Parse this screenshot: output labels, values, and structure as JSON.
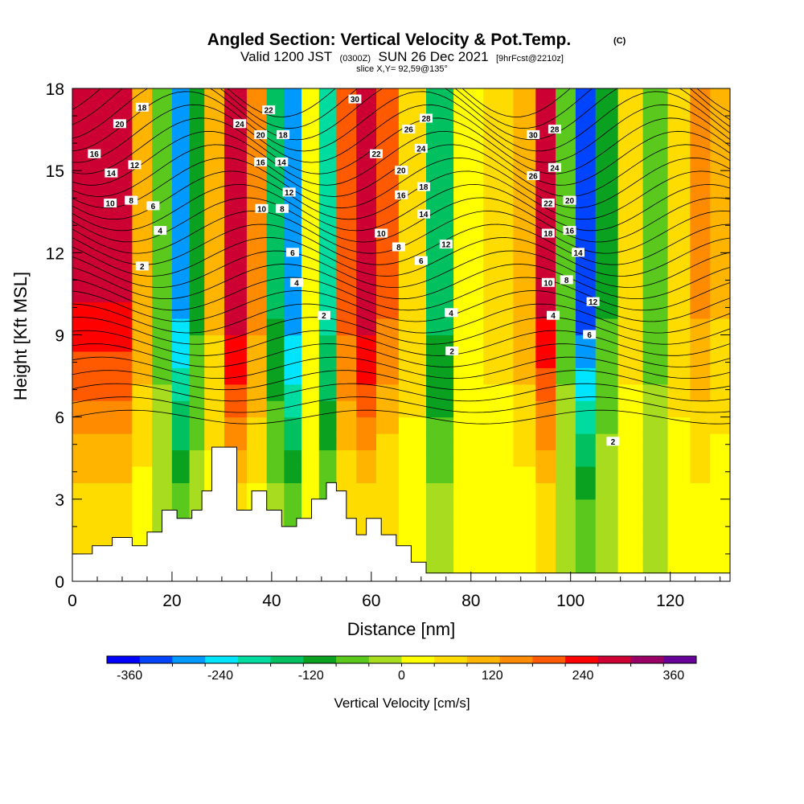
{
  "chart_data": {
    "type": "heatmap",
    "title": "Angled Section: Vertical Velocity & Pot.Temp.",
    "title_units": "(C)",
    "subtitle_parts": [
      "Valid 1200 JST",
      "(0300Z)",
      "SUN 26 Dec 2021",
      "[9hrFcst@2210z]"
    ],
    "slice_label": "slice X,Y= 92,59@135°",
    "xlabel": "Distance [nm]",
    "ylabel": "Height [Kft MSL]",
    "xlim": [
      0,
      132
    ],
    "ylim": [
      0,
      18
    ],
    "xticks": [
      0,
      20,
      40,
      60,
      80,
      100,
      120
    ],
    "yticks": [
      0,
      3,
      6,
      9,
      12,
      15,
      18
    ],
    "colorbar": {
      "label": "Vertical Velocity [cm/s]",
      "tick_values": [
        -360,
        -240,
        -120,
        0,
        120,
        240,
        360
      ],
      "range": [
        -390,
        390
      ],
      "colors": [
        "#0000ff",
        "#0044ff",
        "#0099ff",
        "#00e5ff",
        "#00dca0",
        "#00c060",
        "#0aa020",
        "#5bc81e",
        "#a8dc1e",
        "#ffff00",
        "#ffdc00",
        "#ffb400",
        "#ff8c00",
        "#ff5a00",
        "#ff0000",
        "#cc0033",
        "#990066",
        "#660099"
      ]
    },
    "velocity_bands": [
      {
        "x": 10,
        "v": 260
      },
      {
        "x": 14,
        "v": 120
      },
      {
        "x": 18,
        "v": -60
      },
      {
        "x": 22,
        "v": -280
      },
      {
        "x": 25,
        "v": -100
      },
      {
        "x": 28,
        "v": 100
      },
      {
        "x": 33,
        "v": 300
      },
      {
        "x": 37,
        "v": 150
      },
      {
        "x": 41,
        "v": -140
      },
      {
        "x": 44,
        "v": -300
      },
      {
        "x": 48,
        "v": 40
      },
      {
        "x": 51,
        "v": -200
      },
      {
        "x": 55,
        "v": 200
      },
      {
        "x": 59,
        "v": 300
      },
      {
        "x": 63,
        "v": 180
      },
      {
        "x": 68,
        "v": 80
      },
      {
        "x": 74,
        "v": -150
      },
      {
        "x": 79,
        "v": 30
      },
      {
        "x": 86,
        "v": 60
      },
      {
        "x": 91,
        "v": 120
      },
      {
        "x": 95,
        "v": 280
      },
      {
        "x": 99,
        "v": -60
      },
      {
        "x": 103,
        "v": -330
      },
      {
        "x": 107,
        "v": -90
      },
      {
        "x": 112,
        "v": 60
      },
      {
        "x": 117,
        "v": -60
      },
      {
        "x": 122,
        "v": 80
      },
      {
        "x": 126,
        "v": 140
      },
      {
        "x": 130,
        "v": 90
      }
    ],
    "terrain": [
      {
        "x": 0,
        "h": 1.0
      },
      {
        "x": 4,
        "h": 1.3
      },
      {
        "x": 8,
        "h": 1.6
      },
      {
        "x": 12,
        "h": 1.3
      },
      {
        "x": 15,
        "h": 1.8
      },
      {
        "x": 18,
        "h": 2.6
      },
      {
        "x": 21,
        "h": 2.3
      },
      {
        "x": 24,
        "h": 2.6
      },
      {
        "x": 26,
        "h": 3.3
      },
      {
        "x": 28,
        "h": 4.9
      },
      {
        "x": 31,
        "h": 4.9
      },
      {
        "x": 33,
        "h": 2.6
      },
      {
        "x": 36,
        "h": 3.3
      },
      {
        "x": 39,
        "h": 2.6
      },
      {
        "x": 42,
        "h": 2.0
      },
      {
        "x": 45,
        "h": 2.3
      },
      {
        "x": 48,
        "h": 3.0
      },
      {
        "x": 51,
        "h": 3.6
      },
      {
        "x": 53,
        "h": 3.3
      },
      {
        "x": 55,
        "h": 2.3
      },
      {
        "x": 57,
        "h": 1.7
      },
      {
        "x": 59,
        "h": 2.3
      },
      {
        "x": 62,
        "h": 1.7
      },
      {
        "x": 65,
        "h": 1.3
      },
      {
        "x": 68,
        "h": 0.7
      },
      {
        "x": 71,
        "h": 0.3
      },
      {
        "x": 132,
        "h": 0.3
      }
    ],
    "contour_labels": [
      {
        "text": "16",
        "x": 4.4,
        "y": 15.6
      },
      {
        "text": "20",
        "x": 9.5,
        "y": 16.7
      },
      {
        "text": "18",
        "x": 14.0,
        "y": 17.3
      },
      {
        "text": "14",
        "x": 7.8,
        "y": 14.9
      },
      {
        "text": "12",
        "x": 12.5,
        "y": 15.2
      },
      {
        "text": "10",
        "x": 7.6,
        "y": 13.8
      },
      {
        "text": "8",
        "x": 11.8,
        "y": 13.9
      },
      {
        "text": "6",
        "x": 16.2,
        "y": 13.7
      },
      {
        "text": "4",
        "x": 17.6,
        "y": 12.8
      },
      {
        "text": "2",
        "x": 14.0,
        "y": 11.5
      },
      {
        "text": "24",
        "x": 33.6,
        "y": 16.7
      },
      {
        "text": "22",
        "x": 39.4,
        "y": 17.2
      },
      {
        "text": "20",
        "x": 37.8,
        "y": 16.3
      },
      {
        "text": "18",
        "x": 42.3,
        "y": 16.3
      },
      {
        "text": "16",
        "x": 37.8,
        "y": 15.3
      },
      {
        "text": "14",
        "x": 42.0,
        "y": 15.3
      },
      {
        "text": "12",
        "x": 43.5,
        "y": 14.2
      },
      {
        "text": "10",
        "x": 38.0,
        "y": 13.6
      },
      {
        "text": "8",
        "x": 42.1,
        "y": 13.6
      },
      {
        "text": "6",
        "x": 44.2,
        "y": 12.0
      },
      {
        "text": "4",
        "x": 45.0,
        "y": 10.9
      },
      {
        "text": "2",
        "x": 50.5,
        "y": 9.7
      },
      {
        "text": "30",
        "x": 56.7,
        "y": 17.6
      },
      {
        "text": "28",
        "x": 71.0,
        "y": 16.9
      },
      {
        "text": "26",
        "x": 67.5,
        "y": 16.5
      },
      {
        "text": "24",
        "x": 70.0,
        "y": 15.8
      },
      {
        "text": "22",
        "x": 61.0,
        "y": 15.6
      },
      {
        "text": "20",
        "x": 66.0,
        "y": 15.0
      },
      {
        "text": "18",
        "x": 70.5,
        "y": 14.4
      },
      {
        "text": "16",
        "x": 66.0,
        "y": 14.1
      },
      {
        "text": "14",
        "x": 70.5,
        "y": 13.4
      },
      {
        "text": "10",
        "x": 62.0,
        "y": 12.7
      },
      {
        "text": "8",
        "x": 65.5,
        "y": 12.2
      },
      {
        "text": "6",
        "x": 70.0,
        "y": 11.7
      },
      {
        "text": "12",
        "x": 75.0,
        "y": 12.3
      },
      {
        "text": "4",
        "x": 76.0,
        "y": 9.8
      },
      {
        "text": "2",
        "x": 76.2,
        "y": 8.4
      },
      {
        "text": "30",
        "x": 92.5,
        "y": 16.3
      },
      {
        "text": "28",
        "x": 96.8,
        "y": 16.5
      },
      {
        "text": "26",
        "x": 92.5,
        "y": 14.8
      },
      {
        "text": "24",
        "x": 96.8,
        "y": 15.1
      },
      {
        "text": "22",
        "x": 95.5,
        "y": 13.8
      },
      {
        "text": "20",
        "x": 99.8,
        "y": 13.9
      },
      {
        "text": "18",
        "x": 95.5,
        "y": 12.7
      },
      {
        "text": "16",
        "x": 99.8,
        "y": 12.8
      },
      {
        "text": "14",
        "x": 101.5,
        "y": 12.0
      },
      {
        "text": "10",
        "x": 95.5,
        "y": 10.9
      },
      {
        "text": "8",
        "x": 99.2,
        "y": 11.0
      },
      {
        "text": "12",
        "x": 104.5,
        "y": 10.2
      },
      {
        "text": "4",
        "x": 96.5,
        "y": 9.7
      },
      {
        "text": "6",
        "x": 103.8,
        "y": 9.0
      },
      {
        "text": "2",
        "x": 108.5,
        "y": 5.1
      }
    ]
  }
}
